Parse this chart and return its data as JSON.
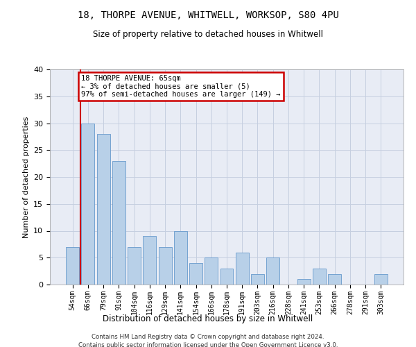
{
  "title1": "18, THORPE AVENUE, WHITWELL, WORKSOP, S80 4PU",
  "title2": "Size of property relative to detached houses in Whitwell",
  "xlabel": "Distribution of detached houses by size in Whitwell",
  "ylabel": "Number of detached properties",
  "categories": [
    "54sqm",
    "66sqm",
    "79sqm",
    "91sqm",
    "104sqm",
    "116sqm",
    "129sqm",
    "141sqm",
    "154sqm",
    "166sqm",
    "178sqm",
    "191sqm",
    "203sqm",
    "216sqm",
    "228sqm",
    "241sqm",
    "253sqm",
    "266sqm",
    "278sqm",
    "291sqm",
    "303sqm"
  ],
  "values": [
    7,
    30,
    28,
    23,
    7,
    9,
    7,
    10,
    4,
    5,
    3,
    6,
    2,
    5,
    0,
    1,
    3,
    2,
    0,
    0,
    2
  ],
  "bar_color": "#b8d0e8",
  "bar_edge_color": "#6699cc",
  "annotation_line1": "18 THORPE AVENUE: 65sqm",
  "annotation_line2": "← 3% of detached houses are smaller (5)",
  "annotation_line3": "97% of semi-detached houses are larger (149) →",
  "annotation_box_color": "#ffffff",
  "annotation_box_edge": "#cc0000",
  "vline_color": "#cc0000",
  "ylim": [
    0,
    40
  ],
  "yticks": [
    0,
    5,
    10,
    15,
    20,
    25,
    30,
    35,
    40
  ],
  "background_color": "#e8ecf5",
  "footer1": "Contains HM Land Registry data © Crown copyright and database right 2024.",
  "footer2": "Contains public sector information licensed under the Open Government Licence v3.0."
}
